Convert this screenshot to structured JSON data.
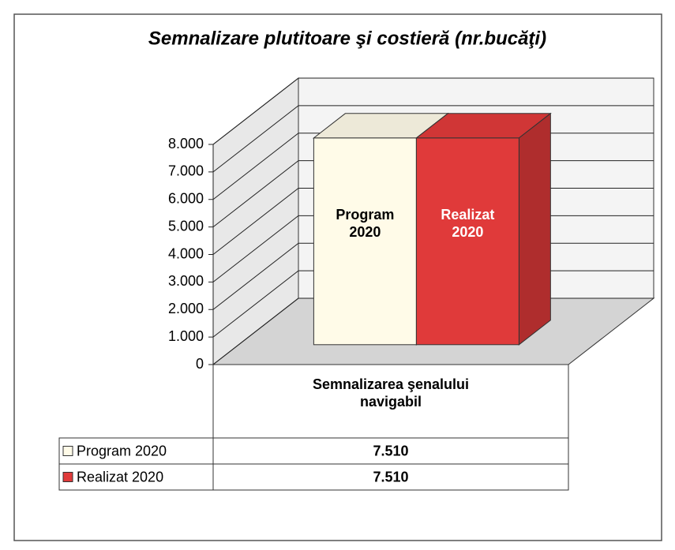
{
  "chart_data": {
    "type": "bar3d",
    "title": "Semnalizare plutitoare şi costieră (nr.bucăţi)",
    "categories": [
      "Semnalizarea şenalului navigabil"
    ],
    "series": [
      {
        "name": "Program 2020",
        "color": "#fffbe8",
        "values": [
          7510
        ],
        "value_labels": [
          "7.510"
        ]
      },
      {
        "name": "Realizat 2020",
        "color": "#e03a3a",
        "values": [
          7510
        ],
        "value_labels": [
          "7.510"
        ]
      }
    ],
    "ylim": [
      0,
      8000
    ],
    "yticks": [
      0,
      {
        "value": 1000,
        "label": "1.000"
      },
      {
        "value": 2000,
        "label": "2.000"
      },
      {
        "value": 3000,
        "label": "3.000"
      },
      {
        "value": 4000,
        "label": "4.000"
      },
      {
        "value": 5000,
        "label": "5.000"
      },
      {
        "value": 6000,
        "label": "6.000"
      },
      {
        "value": 7000,
        "label": "7.000"
      },
      {
        "value": 8000,
        "label": "8.000"
      }
    ],
    "grid": true
  }
}
